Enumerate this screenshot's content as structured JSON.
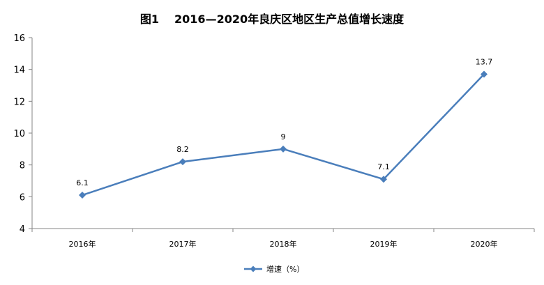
{
  "title": {
    "figure": "图1",
    "text": "2016—2020年良庆区地区生产总值增长速度"
  },
  "colors": {
    "series": "#4a7ebb",
    "axis": "#868686"
  },
  "chart_data": {
    "type": "line",
    "categories": [
      "2016年",
      "2017年",
      "2018年",
      "2019年",
      "2020年"
    ],
    "series": [
      {
        "name": "增速（%）",
        "values": [
          6.1,
          8.2,
          9,
          7.1,
          13.7
        ],
        "labels": [
          "6.1",
          "8.2",
          "9",
          "7.1",
          "13.7"
        ]
      }
    ],
    "ylim": [
      4,
      16
    ],
    "yticks": [
      "4",
      "6",
      "8",
      "10",
      "12",
      "14",
      "16"
    ],
    "grid": false,
    "legend": "bottom",
    "marker": "diamond"
  }
}
